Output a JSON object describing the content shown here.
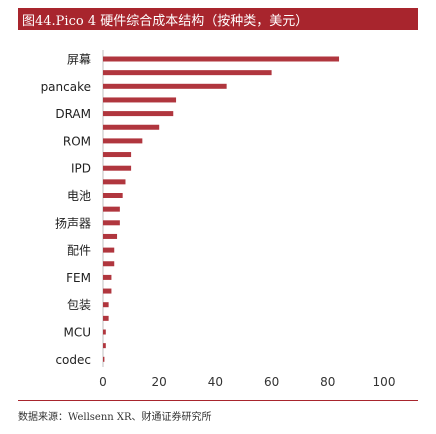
{
  "title": "图44.Pico 4 硬件综合成本结构（按种类，美元）",
  "source": "数据来源：Wellsenn XR、财通证券研究所",
  "colors": {
    "bar": "#b0363e",
    "accent": "#a8252d"
  },
  "chart_data": {
    "type": "bar",
    "orientation": "horizontal",
    "title": "图44.Pico 4 硬件综合成本结构（按种类，美元）",
    "xlabel": "",
    "ylabel": "",
    "xlim": [
      0,
      100
    ],
    "xticks": [
      0,
      20,
      40,
      60,
      80,
      100
    ],
    "categories": [
      "屏幕",
      "",
      "pancake",
      "",
      "DRAM",
      "",
      "ROM",
      "",
      "IPD",
      "",
      "电池",
      "",
      "扬声器",
      "",
      "配件",
      "",
      "FEM",
      "",
      "包装",
      "",
      "MCU",
      "",
      "codec"
    ],
    "values": [
      84,
      60,
      44,
      26,
      25,
      20,
      14,
      10,
      10,
      8,
      7,
      6,
      6,
      5,
      4,
      4,
      3,
      3,
      2,
      2,
      1,
      1,
      0.5
    ],
    "grid": false,
    "legend": "none"
  }
}
